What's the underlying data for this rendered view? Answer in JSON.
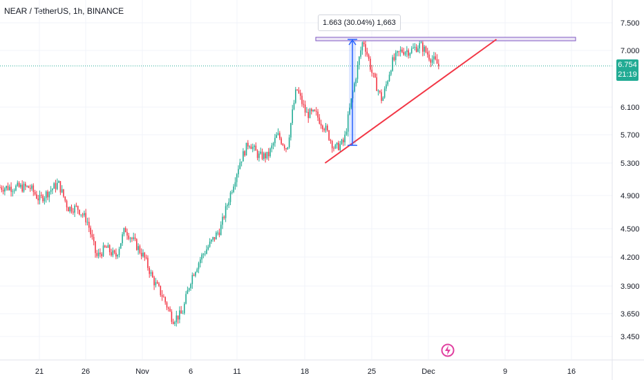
{
  "header": {
    "title": "NEAR / TetherUS, 1h, BINANCE"
  },
  "measure": {
    "label": "1.663 (30.04%) 1,663"
  },
  "price_tag": {
    "price": "6.754",
    "countdown": "21:19"
  },
  "colors": {
    "up": "#22ab94",
    "down": "#f23645",
    "trendline": "#f23645",
    "resistance": "#7e57c2",
    "measure": "#2962ff",
    "last_price_line": "#22ab94"
  },
  "icons": {
    "bolt": "lightning-bolt-icon"
  },
  "chart_data": {
    "type": "candlestick",
    "symbol": "NEAR / TetherUS",
    "interval": "1h",
    "exchange": "BINANCE",
    "y_ticks": [
      "7.500",
      "7.000",
      "6.100",
      "5.700",
      "5.300",
      "4.900",
      "4.500",
      "4.200",
      "3.900",
      "3.650",
      "3.450"
    ],
    "x_ticks": [
      "21",
      "26",
      "Nov",
      "6",
      "11",
      "18",
      "25",
      "Dec",
      "9",
      "16"
    ],
    "last_price": 6.754,
    "series": [
      {
        "name": "price_path_approx",
        "x": [
          "20",
          "21",
          "22",
          "23",
          "24",
          "25",
          "26",
          "27",
          "28",
          "29",
          "30",
          "31",
          "Nov 1",
          "Nov 2",
          "Nov 3",
          "Nov 4",
          "Nov 5",
          "Nov 6",
          "Nov 7",
          "Nov 8",
          "Nov 9",
          "Nov 10",
          "Nov 11",
          "Nov 12",
          "Nov 13",
          "Nov 14",
          "Nov 15",
          "Nov 16",
          "Nov 17",
          "Nov 18",
          "Nov 19",
          "Nov 20",
          "Nov 21",
          "Nov 22",
          "Nov 23",
          "Nov 24",
          "Nov 25",
          "Nov 26",
          "Nov 27",
          "Nov 28",
          "Nov 29",
          "Nov 30",
          "Dec 1",
          "Dec 2"
        ],
        "values": [
          5.0,
          4.85,
          4.95,
          5.05,
          4.75,
          4.75,
          4.6,
          4.2,
          4.3,
          4.2,
          4.5,
          4.35,
          4.2,
          3.95,
          3.8,
          3.6,
          3.65,
          4.0,
          4.2,
          4.35,
          4.5,
          4.9,
          5.3,
          5.6,
          5.4,
          5.4,
          5.7,
          5.5,
          6.4,
          6.0,
          6.0,
          5.8,
          5.5,
          5.6,
          6.4,
          7.2,
          6.6,
          6.2,
          6.8,
          7.0,
          7.0,
          7.1,
          6.9,
          6.75
        ]
      }
    ],
    "drawings": {
      "resistance_level": 7.2,
      "ascending_trendline": {
        "from": {
          "x": "Nov 20",
          "y": 5.3
        },
        "to": {
          "x": "Dec 8",
          "y": 7.2
        }
      },
      "measurement": {
        "from": 5.55,
        "to": 7.2,
        "label": "1.663 (30.04%) 1,663"
      }
    }
  }
}
